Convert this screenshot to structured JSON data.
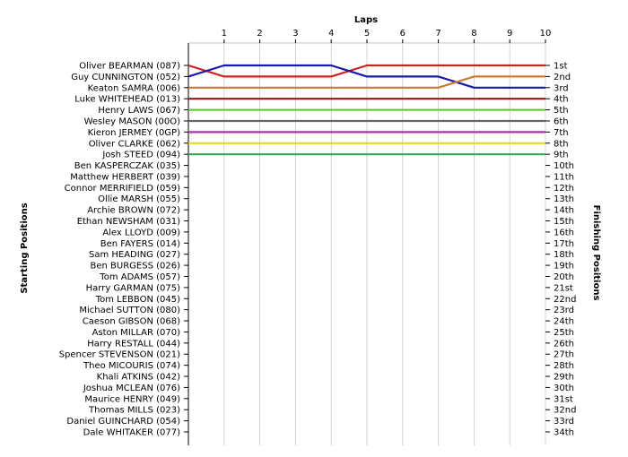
{
  "chart_data": {
    "type": "line",
    "xlabel": "Laps",
    "ylabel_left": "Starting Positions",
    "ylabel_right": "Finishing Positions",
    "laps": [
      0,
      1,
      2,
      3,
      4,
      5,
      6,
      7,
      8,
      9,
      10
    ],
    "lap_labels": [
      "1",
      "2",
      "3",
      "4",
      "5",
      "6",
      "7",
      "8",
      "9",
      "10"
    ],
    "grid": "vertical",
    "ylim": [
      1,
      34
    ],
    "drivers": [
      "Oliver BEARMAN (087)",
      "Guy CUNNINGTON (052)",
      "Keaton SAMRA (006)",
      "Luke WHITEHEAD (013)",
      "Henry LAWS (067)",
      "Wesley MASON (00O)",
      "Kieron JERMEY (0GP)",
      "Oliver CLARKE (062)",
      "Josh STEED (094)",
      "Ben KASPERCZAK (035)",
      "Matthew HERBERT (039)",
      "Connor MERRIFIELD (059)",
      "Ollie MARSH (055)",
      "Archie BROWN (072)",
      "Ethan NEWSHAM (031)",
      "Alex LLOYD (009)",
      "Ben FAYERS (014)",
      "Sam HEADING (027)",
      "Ben BURGESS (026)",
      "Tom ADAMS (057)",
      "Harry GARMAN (075)",
      "Tom LEBBON (045)",
      "Michael SUTTON (080)",
      "Caeson GIBSON (068)",
      "Aston MILLAR (070)",
      "Harry RESTALL (044)",
      "Spencer STEVENSON (021)",
      "Theo MICOURIS (074)",
      "Khali ATKINS (042)",
      "Joshua MCLEAN (076)",
      "Maurice HENRY (049)",
      "Thomas MILLS (023)",
      "Daniel GUINCHARD (054)",
      "Dale WHITAKER (077)"
    ],
    "finish_labels": [
      "1st",
      "2nd",
      "3rd",
      "4th",
      "5th",
      "6th",
      "7th",
      "8th",
      "9th",
      "10th",
      "11th",
      "12th",
      "13th",
      "14th",
      "15th",
      "16th",
      "17th",
      "18th",
      "19th",
      "20th",
      "21st",
      "22nd",
      "23rd",
      "24th",
      "25th",
      "26th",
      "27th",
      "28th",
      "29th",
      "30th",
      "31st",
      "32nd",
      "33rd",
      "34th"
    ],
    "series": [
      {
        "color": "#cc2222",
        "positions": [
          1,
          2,
          2,
          2,
          2,
          1,
          1,
          1,
          1,
          1,
          1
        ]
      },
      {
        "color": "#1a1aaa",
        "positions": [
          2,
          1,
          1,
          1,
          1,
          2,
          2,
          2,
          3,
          3,
          3
        ]
      },
      {
        "color": "#cc7a33",
        "positions": [
          3,
          3,
          3,
          3,
          3,
          3,
          3,
          3,
          2,
          2,
          2
        ]
      },
      {
        "color": "#8b1a1a",
        "positions": [
          4,
          4,
          4,
          4,
          4,
          4,
          4,
          4,
          4,
          4,
          4
        ]
      },
      {
        "color": "#66cc33",
        "positions": [
          5,
          5,
          5,
          5,
          5,
          5,
          5,
          5,
          5,
          5,
          5
        ]
      },
      {
        "color": "#666666",
        "positions": [
          6,
          6,
          6,
          6,
          6,
          6,
          6,
          6,
          6,
          6,
          6
        ]
      },
      {
        "color": "#aa33aa",
        "positions": [
          7,
          7,
          7,
          7,
          7,
          7,
          7,
          7,
          7,
          7,
          7
        ]
      },
      {
        "color": "#dddd22",
        "positions": [
          8,
          8,
          8,
          8,
          8,
          8,
          8,
          8,
          8,
          8,
          8
        ]
      },
      {
        "color": "#33aa55",
        "positions": [
          9,
          9,
          9,
          9,
          9,
          9,
          9,
          9,
          9,
          9,
          9
        ]
      }
    ]
  }
}
